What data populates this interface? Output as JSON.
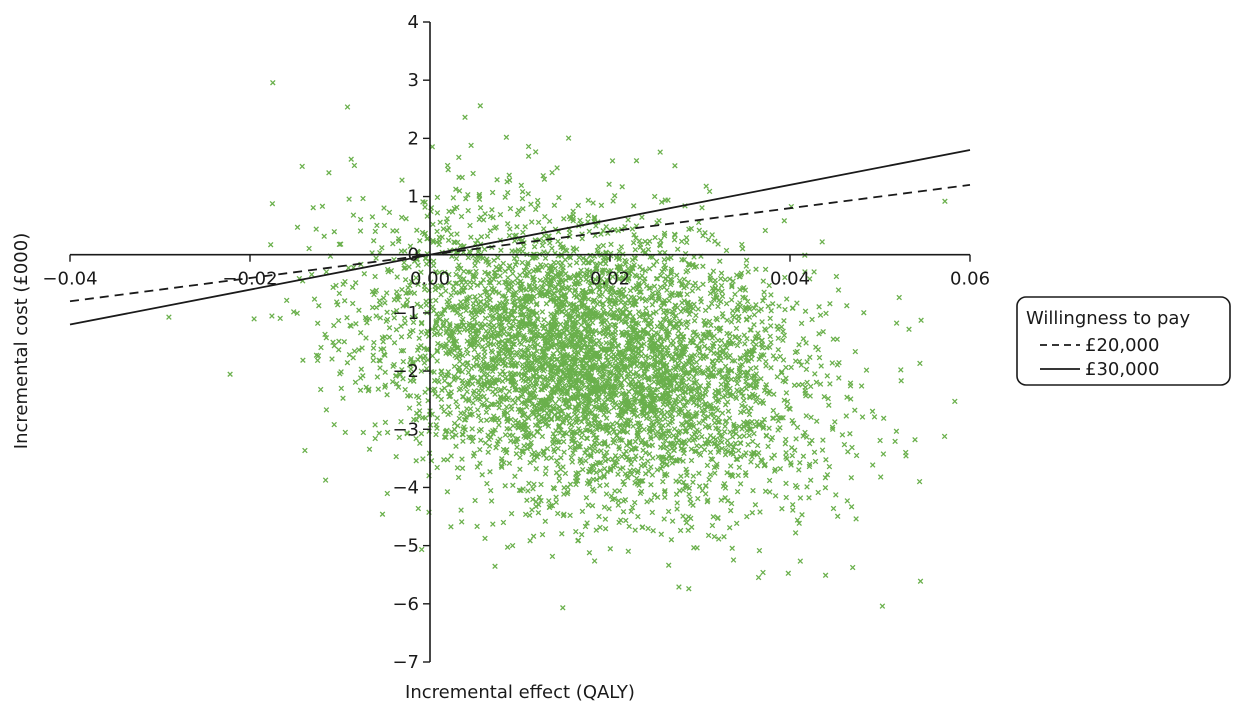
{
  "chart_data": {
    "type": "scatter",
    "title": "",
    "xlabel": "Incremental effect (QALY)",
    "ylabel": "Incremental cost (£000)",
    "xlim": [
      -0.04,
      0.06
    ],
    "ylim": [
      -7,
      4
    ],
    "x_ticks": [
      "−0.04",
      "−0.02",
      "0.00",
      "0.02",
      "0.04",
      "0.06"
    ],
    "y_ticks": [
      "4",
      "3",
      "2",
      "1",
      "0",
      "−1",
      "−2",
      "−3",
      "−4",
      "−5",
      "−6",
      "−7"
    ],
    "grid": false,
    "point_color": "#6ab04c",
    "marker": "x",
    "cloud": {
      "approx_points": 5000,
      "mean_x": 0.018,
      "mean_y": -1.8,
      "sd_x": 0.012,
      "sd_y": 1.25,
      "correlation": -0.25
    },
    "thresholds": [
      {
        "label": "£20,000",
        "wtp_per_qaly_thousands": 20,
        "style": "dashed"
      },
      {
        "label": "£30,000",
        "wtp_per_qaly_thousands": 30,
        "style": "solid"
      }
    ],
    "legend": {
      "title": "Willingness to pay",
      "position": "right",
      "entries": [
        "£20,000",
        "£30,000"
      ]
    }
  }
}
